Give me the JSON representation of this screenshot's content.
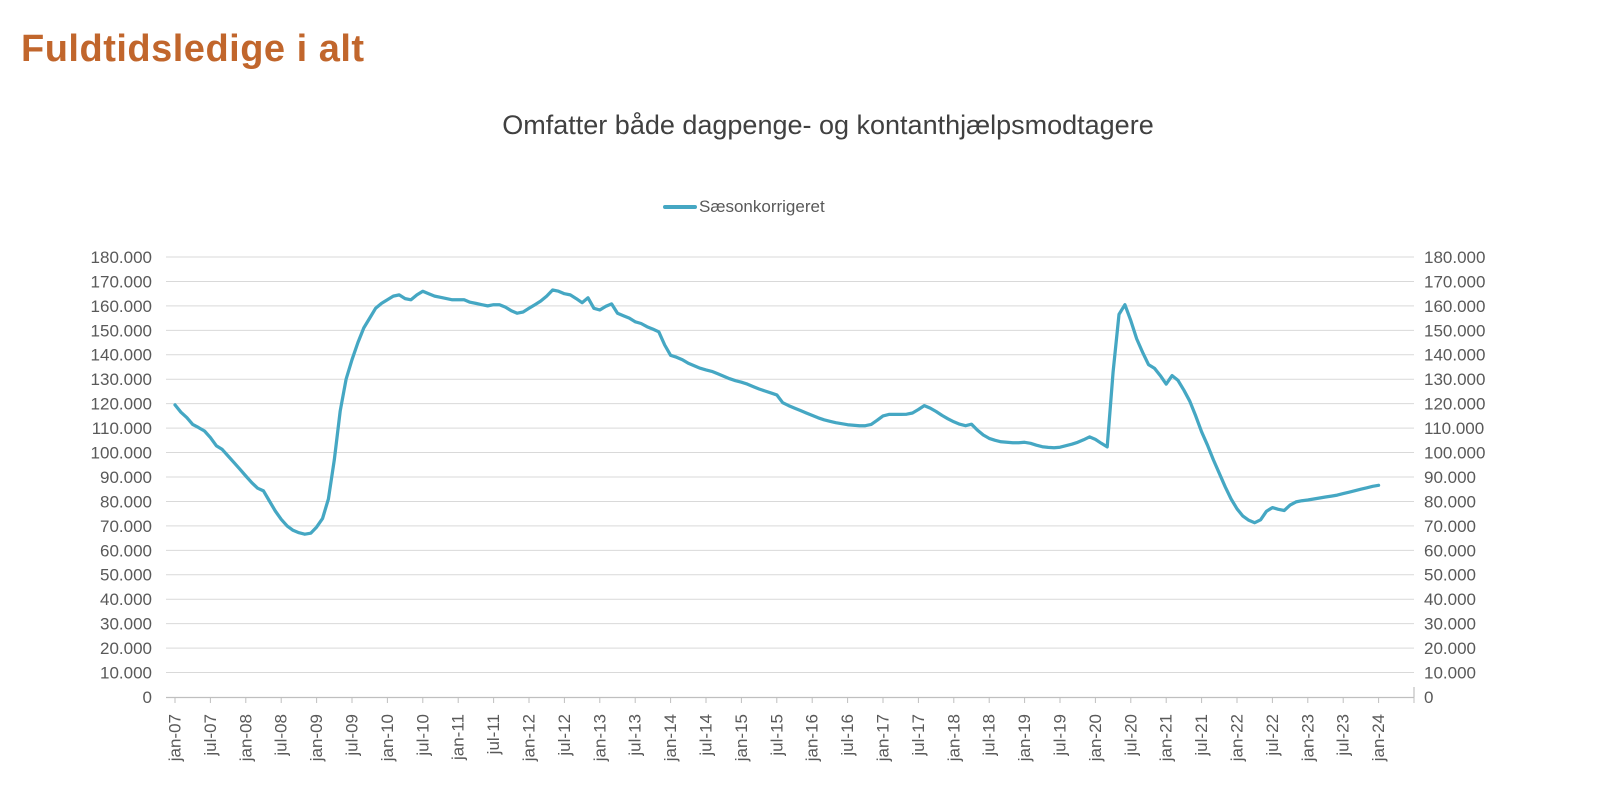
{
  "page": {
    "title": "Fuldtidsledige i alt"
  },
  "colors": {
    "title": "#C1662C",
    "subtitle": "#404040",
    "axis_text": "#595959",
    "gridline": "#D9D9D9",
    "axis_line": "#BFBFBF",
    "series": "#45A7C3",
    "background": "#FFFFFF"
  },
  "chart_data": {
    "type": "line",
    "title": "Omfatter både dagpenge- og kontanthjælpsmodtagere",
    "legend": {
      "position": "top",
      "entries": [
        "Sæsonkorrigeret"
      ]
    },
    "x_frequency": "monthly",
    "x_start": "jan-07",
    "x_end": "jan-24",
    "x_tick_interval_months": 6,
    "x_tick_labels": [
      "jan-07",
      "jul-07",
      "jan-08",
      "jul-08",
      "jan-09",
      "jul-09",
      "jan-10",
      "jul-10",
      "jan-11",
      "jul-11",
      "jan-12",
      "jul-12",
      "jan-13",
      "jul-13",
      "jan-14",
      "jul-14",
      "jan-15",
      "jul-15",
      "jan-16",
      "jul-16",
      "jan-17",
      "jul-17",
      "jan-18",
      "jul-18",
      "jan-19",
      "jul-19",
      "jan-20",
      "jul-20",
      "jan-21",
      "jul-21",
      "jan-22",
      "jul-22",
      "jan-23",
      "jul-23",
      "jan-24"
    ],
    "y_tick_labels": [
      "0",
      "10.000",
      "20.000",
      "30.000",
      "40.000",
      "50.000",
      "60.000",
      "70.000",
      "80.000",
      "90.000",
      "100.000",
      "110.000",
      "120.000",
      "130.000",
      "140.000",
      "150.000",
      "160.000",
      "170.000",
      "180.000"
    ],
    "y_tick_step": 10000,
    "ylim": [
      0,
      180000
    ],
    "grid": "horizontal",
    "dual_y_axis": true,
    "series": [
      {
        "name": "Sæsonkorrigeret",
        "color": "#45A7C3",
        "values": [
          119500,
          116500,
          114300,
          111500,
          110200,
          108800,
          106100,
          102800,
          101300,
          98600,
          95900,
          93200,
          90400,
          87700,
          85400,
          84300,
          80200,
          76100,
          72700,
          70000,
          68200,
          67200,
          66600,
          67000,
          69500,
          73000,
          81000,
          97000,
          117000,
          130000,
          138000,
          145000,
          151000,
          155000,
          159000,
          161000,
          162500,
          164000,
          164500,
          163000,
          162500,
          164500,
          166000,
          165000,
          164000,
          163500,
          163000,
          162500,
          162500,
          162500,
          161500,
          161000,
          160500,
          160000,
          160500,
          160500,
          159500,
          158000,
          157000,
          157500,
          159000,
          160500,
          162000,
          164000,
          166500,
          166000,
          165000,
          164500,
          163000,
          161300,
          163300,
          159000,
          158300,
          159800,
          160800,
          157000,
          156000,
          155000,
          153500,
          152800,
          151500,
          150500,
          149400,
          144000,
          139800,
          139000,
          138000,
          136500,
          135500,
          134500,
          133800,
          133200,
          132200,
          131200,
          130200,
          129400,
          128800,
          128000,
          127000,
          126000,
          125200,
          124400,
          123600,
          120400,
          119200,
          118200,
          117200,
          116200,
          115200,
          114200,
          113400,
          112800,
          112200,
          111800,
          111400,
          111200,
          111000,
          111000,
          111500,
          113200,
          115000,
          115600,
          115600,
          115600,
          115700,
          116200,
          117600,
          119200,
          118200,
          116800,
          115200,
          113800,
          112600,
          111600,
          111000,
          111600,
          109200,
          107200,
          105800,
          105000,
          104400,
          104200,
          104000,
          104000,
          104200,
          103800,
          103000,
          102400,
          102100,
          102000,
          102200,
          102800,
          103400,
          104200,
          105200,
          106400,
          105400,
          103800,
          102300,
          133000,
          156500,
          160500,
          154000,
          146500,
          141000,
          136000,
          134500,
          131500,
          128000,
          131500,
          129500,
          125500,
          121000,
          115000,
          108500,
          103000,
          97000,
          91500,
          86000,
          81000,
          77000,
          74000,
          72300,
          71300,
          72500,
          76000,
          77500,
          76800,
          76300,
          78500,
          79800,
          80300,
          80600,
          81000,
          81400,
          81800,
          82200,
          82600,
          83200,
          83800,
          84400,
          85000,
          85600,
          86200,
          86600
        ]
      }
    ]
  }
}
